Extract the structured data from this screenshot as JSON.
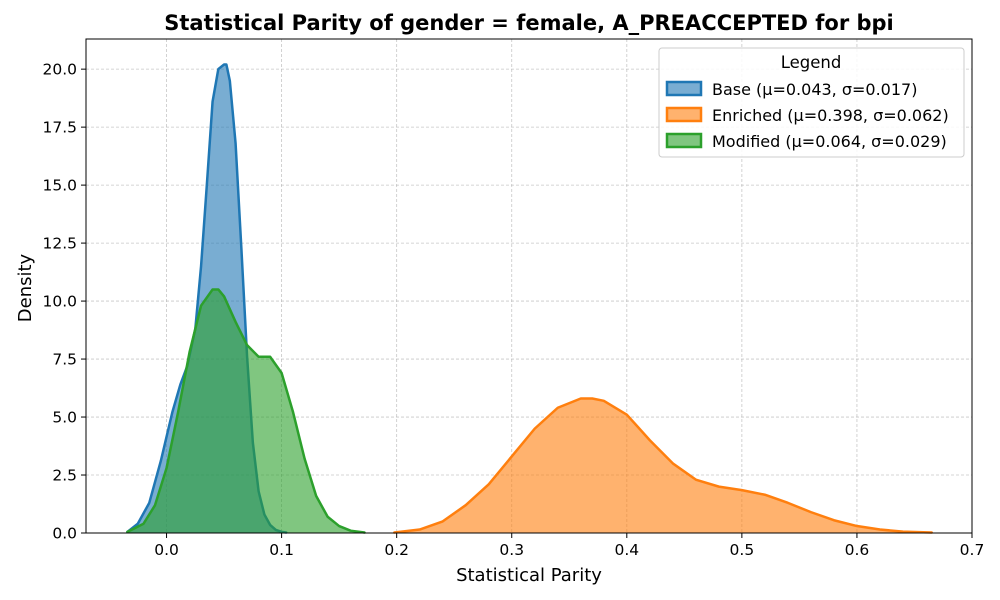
{
  "chart_data": {
    "type": "area",
    "title": "Statistical Parity of gender = female, A_PREACCEPTED for bpi",
    "xlabel": "Statistical Parity",
    "ylabel": "Density",
    "xlim": [
      -0.07,
      0.7
    ],
    "ylim": [
      0,
      21.3
    ],
    "x_ticks": [
      0.0,
      0.1,
      0.2,
      0.3,
      0.4,
      0.5,
      0.6,
      0.7
    ],
    "x_tick_labels": [
      "0.0",
      "0.1",
      "0.2",
      "0.3",
      "0.4",
      "0.5",
      "0.6",
      "0.7"
    ],
    "y_ticks": [
      0,
      2.5,
      5,
      7.5,
      10,
      12.5,
      15,
      17.5,
      20
    ],
    "y_tick_labels": [
      "0.0",
      "2.5",
      "5.0",
      "7.5",
      "10.0",
      "12.5",
      "15.0",
      "17.5",
      "20.0"
    ],
    "grid": true,
    "legend": {
      "title": "Legend",
      "placement": "top-right"
    },
    "series": [
      {
        "name": "Base (μ=0.043, σ=0.017)",
        "color": "#1f77b4",
        "fill": "#1f77b4",
        "x": [
          -0.034,
          -0.025,
          -0.015,
          -0.005,
          0.005,
          0.012,
          0.018,
          0.025,
          0.03,
          0.035,
          0.04,
          0.045,
          0.05,
          0.052,
          0.055,
          0.06,
          0.065,
          0.07,
          0.075,
          0.08,
          0.085,
          0.09,
          0.095,
          0.1,
          0.104
        ],
        "y": [
          0.05,
          0.4,
          1.3,
          3.1,
          5.2,
          6.4,
          7.2,
          8.8,
          11.5,
          15.0,
          18.6,
          20.0,
          20.2,
          20.2,
          19.5,
          16.8,
          12.3,
          7.6,
          3.9,
          1.8,
          0.8,
          0.35,
          0.13,
          0.05,
          0.02
        ]
      },
      {
        "name": "Enriched (μ=0.398, σ=0.062)",
        "color": "#ff7f0e",
        "fill": "#ff7f0e",
        "x": [
          0.198,
          0.22,
          0.24,
          0.26,
          0.28,
          0.3,
          0.32,
          0.34,
          0.36,
          0.37,
          0.38,
          0.4,
          0.42,
          0.44,
          0.46,
          0.48,
          0.5,
          0.52,
          0.54,
          0.56,
          0.58,
          0.6,
          0.62,
          0.64,
          0.665
        ],
        "y": [
          0.02,
          0.15,
          0.5,
          1.2,
          2.1,
          3.3,
          4.5,
          5.4,
          5.8,
          5.8,
          5.7,
          5.1,
          4.0,
          3.0,
          2.3,
          2.0,
          1.85,
          1.65,
          1.3,
          0.9,
          0.55,
          0.3,
          0.15,
          0.06,
          0.02
        ]
      },
      {
        "name": "Modified (μ=0.064, σ=0.029)",
        "color": "#2ca02c",
        "fill": "#2ca02c",
        "x": [
          -0.034,
          -0.02,
          -0.01,
          0.0,
          0.01,
          0.02,
          0.03,
          0.04,
          0.045,
          0.05,
          0.06,
          0.07,
          0.08,
          0.09,
          0.1,
          0.11,
          0.12,
          0.13,
          0.14,
          0.15,
          0.16,
          0.172
        ],
        "y": [
          0.05,
          0.4,
          1.2,
          2.8,
          5.2,
          7.8,
          9.8,
          10.5,
          10.5,
          10.2,
          9.1,
          8.1,
          7.6,
          7.6,
          6.9,
          5.2,
          3.2,
          1.6,
          0.7,
          0.3,
          0.1,
          0.02
        ]
      }
    ]
  }
}
